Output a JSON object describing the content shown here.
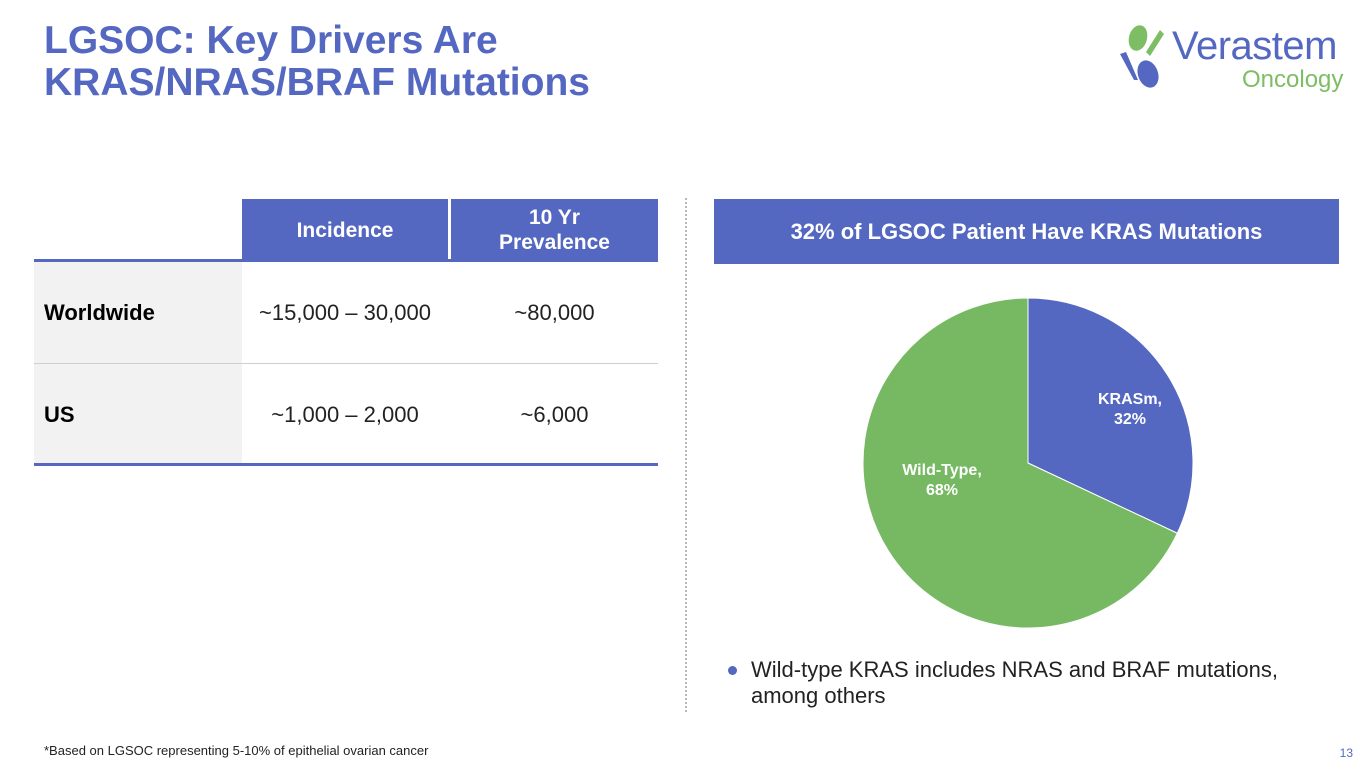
{
  "slide": {
    "title_line1": "LGSOC: Key Drivers Are",
    "title_line2": "KRAS/NRAS/BRAF Mutations",
    "page_number": "13",
    "footnote": "*Based on LGSOC representing 5-10% of epithelial ovarian cancer"
  },
  "logo": {
    "name": "Verastem",
    "sub": "Oncology"
  },
  "table": {
    "headers": {
      "incidence": "Incidence",
      "prevalence_line1": "10 Yr",
      "prevalence_line2": "Prevalence"
    },
    "rows": [
      {
        "label": "Worldwide",
        "incidence": "~15,000 – 30,000",
        "prevalence": "~80,000"
      },
      {
        "label": "US",
        "incidence": "~1,000 – 2,000",
        "prevalence": "~6,000"
      }
    ]
  },
  "colors": {
    "accent_blue": "#5467c1",
    "green": "#7aba62"
  },
  "chart_data": {
    "type": "pie",
    "title": "32% of LGSOC Patient Have KRAS Mutations",
    "categories": [
      "KRASm",
      "Wild-Type"
    ],
    "values": [
      32,
      68
    ],
    "colors": [
      "#5467c1",
      "#77b963"
    ],
    "labels": [
      {
        "name": "KRASm,",
        "value": "32%"
      },
      {
        "name": "Wild-Type,",
        "value": "68%"
      }
    ],
    "legend": "none"
  },
  "notes": {
    "bullet_line1": "Wild-type KRAS includes NRAS and BRAF mutations,",
    "bullet_line2": "among others"
  }
}
